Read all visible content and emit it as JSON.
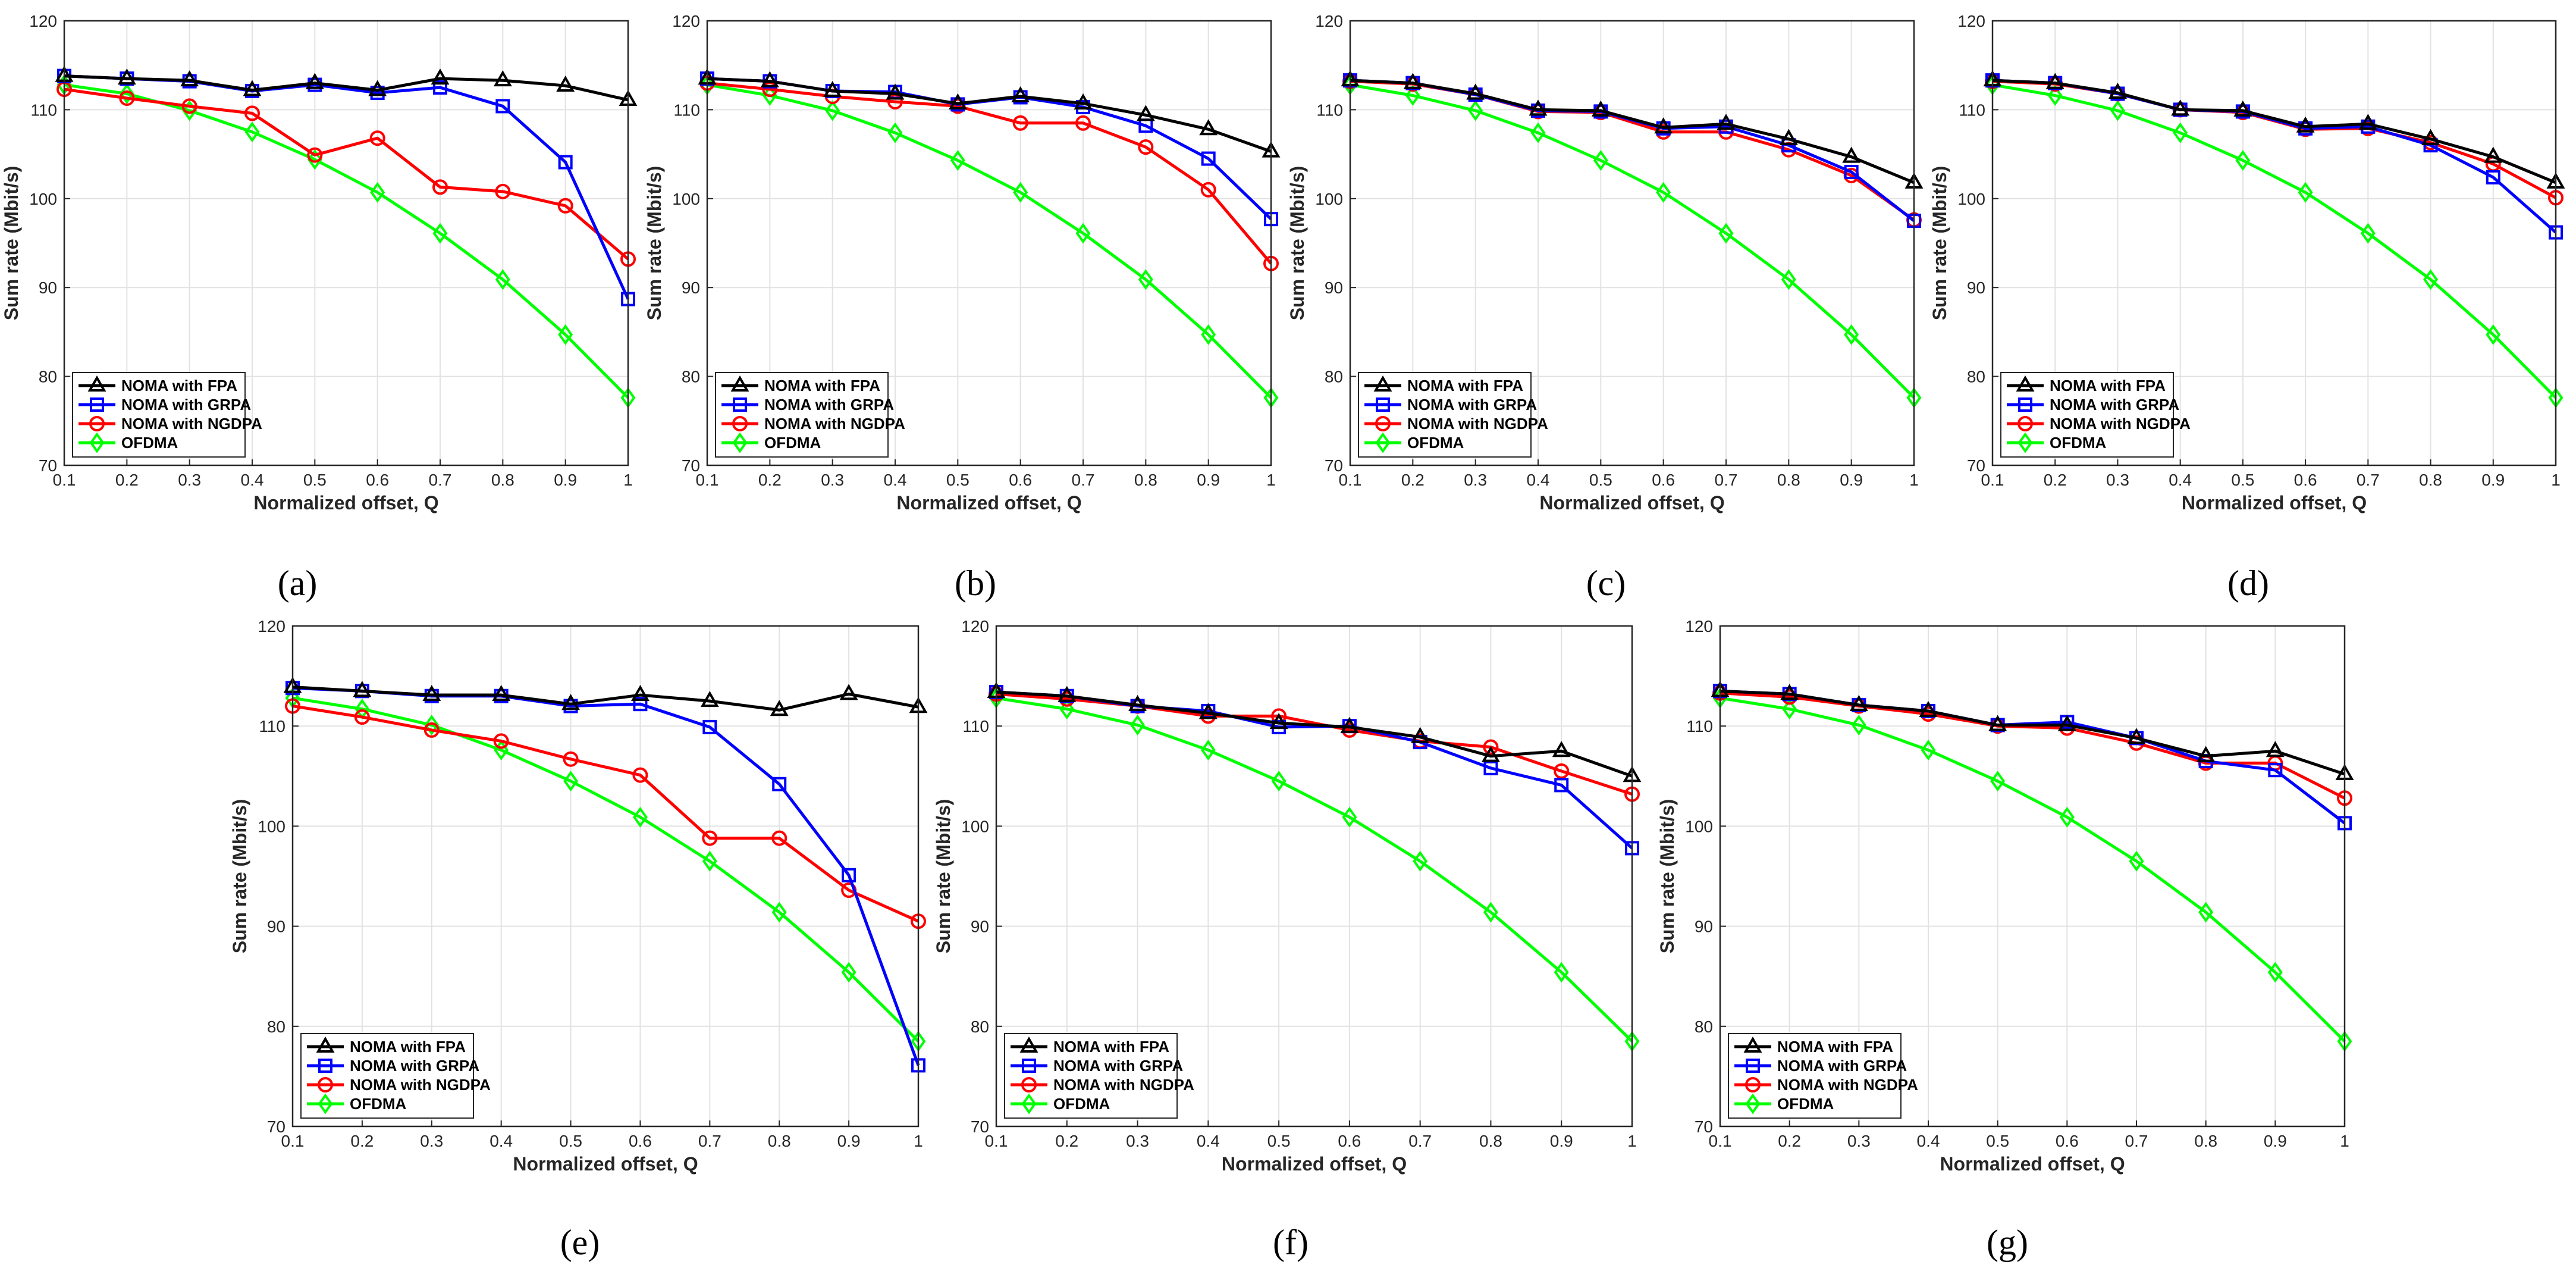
{
  "figure": {
    "background": "#ffffff"
  },
  "series_styles": [
    {
      "name": "NOMA with FPA",
      "color": "#000000",
      "marker": "triangle"
    },
    {
      "name": "NOMA with GRPA",
      "color": "#0000ff",
      "marker": "square"
    },
    {
      "name": "NOMA with NGDPA",
      "color": "#ff0000",
      "marker": "circle"
    },
    {
      "name": "OFDMA",
      "color": "#00ff00",
      "marker": "diamond"
    }
  ],
  "chart_data": [
    {
      "type": "line",
      "panel_label": "(a)",
      "xlabel": "Normalized offset, Q",
      "ylabel": "Sum rate (Mbit/s)",
      "xlim": [
        0.1,
        1
      ],
      "ylim": [
        70,
        120
      ],
      "xticks": [
        "0.1",
        "0.2",
        "0.3",
        "0.4",
        "0.5",
        "0.6",
        "0.7",
        "0.8",
        "0.9",
        "1"
      ],
      "yticks": [
        "70",
        "80",
        "90",
        "100",
        "110",
        "120"
      ],
      "legend": "bottom-left",
      "grid": true,
      "x": [
        0.1,
        0.2,
        0.3,
        0.4,
        0.5,
        0.6,
        0.7,
        0.8,
        0.9,
        1.0
      ],
      "series": [
        {
          "name": "NOMA with FPA",
          "values": [
            113.8,
            113.5,
            113.3,
            112.2,
            113.0,
            112.2,
            113.5,
            113.3,
            112.7,
            111.1
          ]
        },
        {
          "name": "NOMA with GRPA",
          "values": [
            113.8,
            113.5,
            113.2,
            112.1,
            112.8,
            111.9,
            112.5,
            110.4,
            104.1,
            88.7
          ]
        },
        {
          "name": "NOMA with NGDPA",
          "values": [
            112.3,
            111.3,
            110.4,
            109.6,
            104.9,
            106.8,
            101.3,
            100.8,
            99.2,
            93.2
          ]
        },
        {
          "name": "OFDMA",
          "values": [
            112.8,
            111.8,
            109.9,
            107.5,
            104.4,
            100.7,
            96.1,
            90.9,
            84.7,
            77.6
          ]
        }
      ]
    },
    {
      "type": "line",
      "panel_label": "(b)",
      "xlabel": "Normalized offset, Q",
      "ylabel": "Sum rate (Mbit/s)",
      "xlim": [
        0.1,
        1
      ],
      "ylim": [
        70,
        120
      ],
      "xticks": [
        "0.1",
        "0.2",
        "0.3",
        "0.4",
        "0.5",
        "0.6",
        "0.7",
        "0.8",
        "0.9",
        "1"
      ],
      "yticks": [
        "70",
        "80",
        "90",
        "100",
        "110",
        "120"
      ],
      "legend": "bottom-left",
      "grid": true,
      "x": [
        0.1,
        0.2,
        0.3,
        0.4,
        0.5,
        0.6,
        0.7,
        0.8,
        0.9,
        1.0
      ],
      "series": [
        {
          "name": "NOMA with FPA",
          "values": [
            113.5,
            113.2,
            112.1,
            111.8,
            110.7,
            111.5,
            110.7,
            109.4,
            107.8,
            105.3
          ]
        },
        {
          "name": "NOMA with GRPA",
          "values": [
            113.5,
            113.2,
            112.1,
            112.0,
            110.6,
            111.4,
            110.3,
            108.2,
            104.5,
            97.7
          ]
        },
        {
          "name": "NOMA with NGDPA",
          "values": [
            113.0,
            112.3,
            111.5,
            110.9,
            110.4,
            108.5,
            108.5,
            105.8,
            101.0,
            92.7
          ]
        },
        {
          "name": "OFDMA",
          "values": [
            112.8,
            111.6,
            109.9,
            107.4,
            104.3,
            100.7,
            96.1,
            90.9,
            84.7,
            77.6
          ]
        }
      ]
    },
    {
      "type": "line",
      "panel_label": "(c)",
      "xlabel": "Normalized offset, Q",
      "ylabel": "Sum rate (Mbit/s)",
      "xlim": [
        0.1,
        1
      ],
      "ylim": [
        70,
        120
      ],
      "xticks": [
        "0.1",
        "0.2",
        "0.3",
        "0.4",
        "0.5",
        "0.6",
        "0.7",
        "0.8",
        "0.9",
        "1"
      ],
      "yticks": [
        "70",
        "80",
        "90",
        "100",
        "110",
        "120"
      ],
      "legend": "bottom-left",
      "grid": true,
      "x": [
        0.1,
        0.2,
        0.3,
        0.4,
        0.5,
        0.6,
        0.7,
        0.8,
        0.9,
        1.0
      ],
      "series": [
        {
          "name": "NOMA with FPA",
          "values": [
            113.3,
            113.0,
            111.8,
            110.0,
            109.9,
            108.0,
            108.4,
            106.7,
            104.7,
            101.8
          ]
        },
        {
          "name": "NOMA with GRPA",
          "values": [
            113.3,
            113.0,
            111.7,
            109.9,
            109.8,
            107.9,
            108.1,
            106.0,
            103.0,
            97.5
          ]
        },
        {
          "name": "NOMA with NGDPA",
          "values": [
            113.2,
            112.9,
            111.7,
            109.8,
            109.7,
            107.5,
            107.5,
            105.5,
            102.6,
            97.6
          ]
        },
        {
          "name": "OFDMA",
          "values": [
            112.8,
            111.6,
            109.9,
            107.4,
            104.3,
            100.7,
            96.1,
            90.9,
            84.7,
            77.6
          ]
        }
      ]
    },
    {
      "type": "line",
      "panel_label": "(d)",
      "xlabel": "Normalized offset, Q",
      "ylabel": "Sum rate (Mbit/s)",
      "xlim": [
        0.1,
        1
      ],
      "ylim": [
        70,
        120
      ],
      "xticks": [
        "0.1",
        "0.2",
        "0.3",
        "0.4",
        "0.5",
        "0.6",
        "0.7",
        "0.8",
        "0.9",
        "1"
      ],
      "yticks": [
        "70",
        "80",
        "90",
        "100",
        "110",
        "120"
      ],
      "legend": "bottom-left",
      "grid": true,
      "x": [
        0.1,
        0.2,
        0.3,
        0.4,
        0.5,
        0.6,
        0.7,
        0.8,
        0.9,
        1.0
      ],
      "series": [
        {
          "name": "NOMA with FPA",
          "values": [
            113.3,
            113.0,
            111.9,
            110.0,
            109.9,
            108.1,
            108.4,
            106.7,
            104.7,
            101.8
          ]
        },
        {
          "name": "NOMA with GRPA",
          "values": [
            113.3,
            113.0,
            111.8,
            110.0,
            109.8,
            107.9,
            108.1,
            106.0,
            102.4,
            96.2
          ]
        },
        {
          "name": "NOMA with NGDPA",
          "values": [
            113.2,
            112.9,
            111.8,
            110.0,
            109.7,
            107.8,
            107.9,
            106.3,
            103.9,
            100.1
          ]
        },
        {
          "name": "OFDMA",
          "values": [
            112.8,
            111.6,
            109.9,
            107.4,
            104.3,
            100.7,
            96.1,
            90.9,
            84.7,
            77.6
          ]
        }
      ]
    },
    {
      "type": "line",
      "panel_label": "(e)",
      "xlabel": "Normalized offset, Q",
      "ylabel": "Sum rate (Mbit/s)",
      "xlim": [
        0.1,
        1
      ],
      "ylim": [
        70,
        120
      ],
      "xticks": [
        "0.1",
        "0.2",
        "0.3",
        "0.4",
        "0.5",
        "0.6",
        "0.7",
        "0.8",
        "0.9",
        "1"
      ],
      "yticks": [
        "70",
        "80",
        "90",
        "100",
        "110",
        "120"
      ],
      "legend": "bottom-left",
      "grid": true,
      "x": [
        0.1,
        0.2,
        0.3,
        0.4,
        0.5,
        0.6,
        0.7,
        0.8,
        0.9,
        1.0
      ],
      "series": [
        {
          "name": "NOMA with FPA",
          "values": [
            113.9,
            113.5,
            113.1,
            113.1,
            112.2,
            113.1,
            112.5,
            111.6,
            113.2,
            111.9
          ]
        },
        {
          "name": "NOMA with GRPA",
          "values": [
            113.8,
            113.5,
            113.0,
            113.0,
            112.0,
            112.2,
            109.9,
            104.2,
            95.1,
            76.1
          ]
        },
        {
          "name": "NOMA with NGDPA",
          "values": [
            112.0,
            110.9,
            109.6,
            108.5,
            106.7,
            105.1,
            98.8,
            98.8,
            93.6,
            90.5
          ]
        },
        {
          "name": "OFDMA",
          "values": [
            112.8,
            111.7,
            110.1,
            107.6,
            104.5,
            100.9,
            96.5,
            91.4,
            85.4,
            78.5
          ]
        }
      ]
    },
    {
      "type": "line",
      "panel_label": "(f)",
      "xlabel": "Normalized offset, Q",
      "ylabel": "Sum rate (Mbit/s)",
      "xlim": [
        0.1,
        1
      ],
      "ylim": [
        70,
        120
      ],
      "xticks": [
        "0.1",
        "0.2",
        "0.3",
        "0.4",
        "0.5",
        "0.6",
        "0.7",
        "0.8",
        "0.9",
        "1"
      ],
      "yticks": [
        "70",
        "80",
        "90",
        "100",
        "110",
        "120"
      ],
      "legend": "bottom-left",
      "grid": true,
      "x": [
        0.1,
        0.2,
        0.3,
        0.4,
        0.5,
        0.6,
        0.7,
        0.8,
        0.9,
        1.0
      ],
      "series": [
        {
          "name": "NOMA with FPA",
          "values": [
            113.4,
            113.0,
            112.1,
            111.3,
            110.3,
            109.9,
            108.9,
            107.0,
            107.5,
            105.0
          ]
        },
        {
          "name": "NOMA with GRPA",
          "values": [
            113.4,
            113.0,
            112.0,
            111.5,
            109.9,
            110.0,
            108.4,
            105.8,
            104.1,
            97.8
          ]
        },
        {
          "name": "NOMA with NGDPA",
          "values": [
            113.2,
            112.7,
            112.0,
            111.0,
            111.0,
            109.6,
            108.5,
            107.9,
            105.5,
            103.2
          ]
        },
        {
          "name": "OFDMA",
          "values": [
            112.8,
            111.7,
            110.1,
            107.6,
            104.5,
            100.9,
            96.5,
            91.4,
            85.4,
            78.5
          ]
        }
      ]
    },
    {
      "type": "line",
      "panel_label": "(g)",
      "xlabel": "Normalized offset, Q",
      "ylabel": "Sum rate (Mbit/s)",
      "xlim": [
        0.1,
        1
      ],
      "ylim": [
        70,
        120
      ],
      "xticks": [
        "0.1",
        "0.2",
        "0.3",
        "0.4",
        "0.5",
        "0.6",
        "0.7",
        "0.8",
        "0.9",
        "1"
      ],
      "yticks": [
        "70",
        "80",
        "90",
        "100",
        "110",
        "120"
      ],
      "legend": "bottom-left",
      "grid": true,
      "x": [
        0.1,
        0.2,
        0.3,
        0.4,
        0.5,
        0.6,
        0.7,
        0.8,
        0.9,
        1.0
      ],
      "series": [
        {
          "name": "NOMA with FPA",
          "values": [
            113.5,
            113.2,
            112.1,
            111.5,
            110.1,
            110.1,
            108.8,
            107.0,
            107.5,
            105.2
          ]
        },
        {
          "name": "NOMA with GRPA",
          "values": [
            113.5,
            113.2,
            112.1,
            111.5,
            110.1,
            110.4,
            108.8,
            106.5,
            105.6,
            100.3
          ]
        },
        {
          "name": "NOMA with NGDPA",
          "values": [
            113.3,
            112.9,
            112.0,
            111.2,
            110.0,
            109.8,
            108.3,
            106.3,
            106.3,
            102.8
          ]
        },
        {
          "name": "OFDMA",
          "values": [
            112.8,
            111.7,
            110.1,
            107.6,
            104.5,
            100.9,
            96.5,
            91.4,
            85.4,
            78.5
          ]
        }
      ]
    }
  ]
}
